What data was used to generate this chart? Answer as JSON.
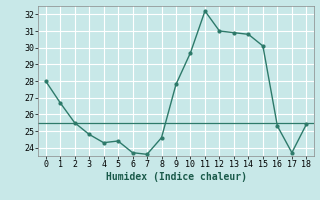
{
  "x": [
    0,
    1,
    2,
    3,
    4,
    5,
    6,
    7,
    8,
    9,
    10,
    11,
    12,
    13,
    14,
    15,
    16,
    17,
    18
  ],
  "y": [
    28,
    26.7,
    25.5,
    24.8,
    24.3,
    24.4,
    23.7,
    23.6,
    24.6,
    27.8,
    29.7,
    32.2,
    31.0,
    30.9,
    30.8,
    30.1,
    25.3,
    23.7,
    25.4
  ],
  "xlabel": "Humidex (Indice chaleur)",
  "ylim": [
    23.5,
    32.5
  ],
  "xlim": [
    -0.5,
    18.5
  ],
  "yticks": [
    24,
    25,
    26,
    27,
    28,
    29,
    30,
    31,
    32
  ],
  "xticks": [
    0,
    1,
    2,
    3,
    4,
    5,
    6,
    7,
    8,
    9,
    10,
    11,
    12,
    13,
    14,
    15,
    16,
    17,
    18
  ],
  "line_color": "#2d7a6a",
  "marker_color": "#2d7a6a",
  "bg_color": "#c8e8e8",
  "grid_color": "#b0d8d8",
  "ref_line_y": 25.5,
  "ref_line_color": "#2d7a6a",
  "xlabel_fontsize": 7,
  "tick_fontsize": 6
}
